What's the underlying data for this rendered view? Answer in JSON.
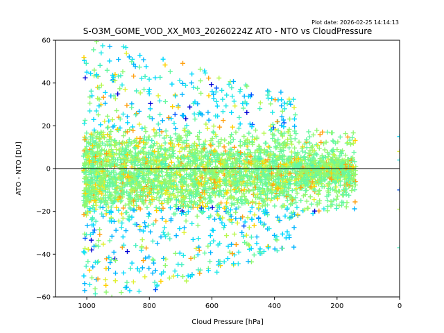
{
  "chart_data": {
    "type": "scatter",
    "title": "S-O3M_GOME_VOD_XX_M03_20260224Z ATO - NTO vs CloudPressure",
    "plot_date": "Plot date: 2026-02-25 14:14:13",
    "xlabel": "Cloud Pressure [hPa]",
    "ylabel": "ATO - NTO [DU]",
    "xlim": [
      1100,
      0
    ],
    "ylim": [
      -60,
      60
    ],
    "xticks": [
      1000,
      800,
      600,
      400,
      200,
      0
    ],
    "yticks": [
      -60,
      -40,
      -20,
      0,
      20,
      40,
      60
    ],
    "reference_line": {
      "y": 0,
      "color": "#000000"
    },
    "marker": "+",
    "colormap": [
      "#0000d4",
      "#0055ff",
      "#00b4ff",
      "#00d8ff",
      "#22e8e8",
      "#44f0c0",
      "#66f8a0",
      "#90f870",
      "#b8f850",
      "#e0f030",
      "#ffd000",
      "#ffa010"
    ],
    "point_distribution": {
      "x_range": [
        140,
        1010
      ],
      "dense_y_range": [
        -22,
        20
      ],
      "sparse_y_range": [
        -60,
        60
      ],
      "count": 3800,
      "edge_points_at_x": 0
    }
  }
}
